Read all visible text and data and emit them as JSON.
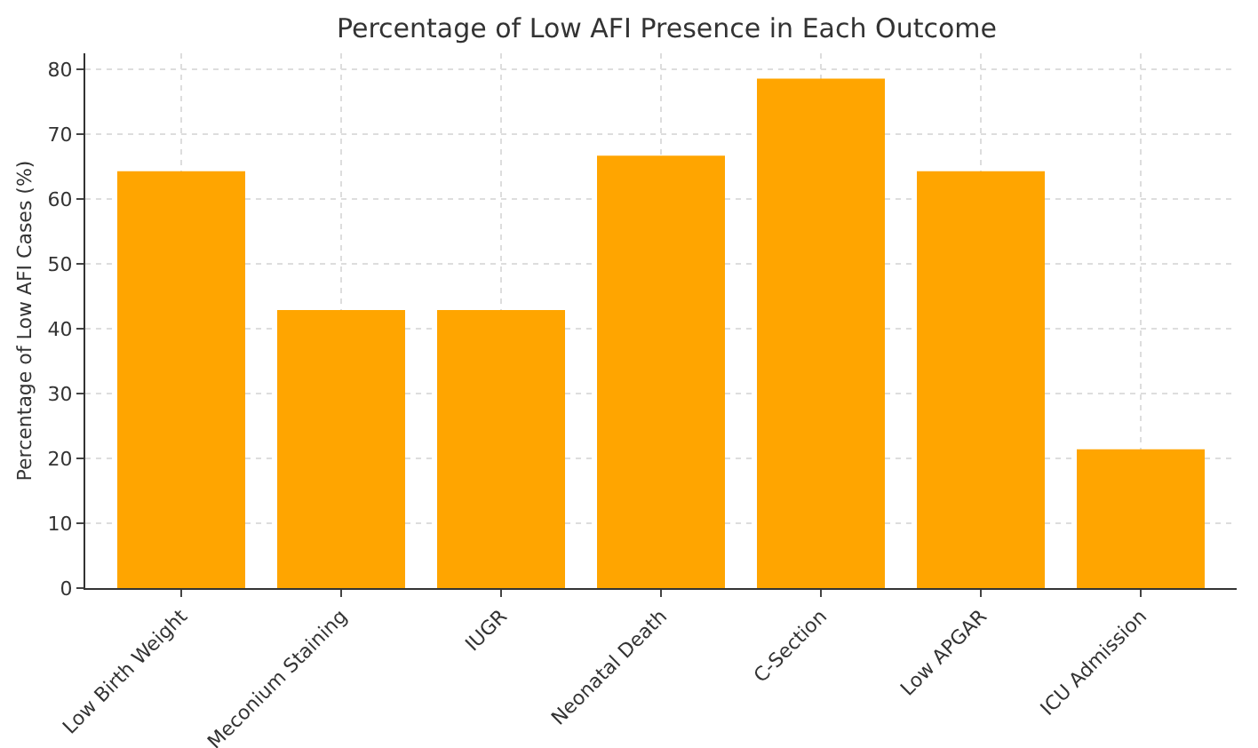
{
  "chart_data": {
    "type": "bar",
    "title": "Percentage of Low AFI Presence in Each Outcome",
    "ylabel": "Percentage of Low AFI Cases (%)",
    "categories": [
      "Low Birth Weight",
      "Meconium Staining",
      "IUGR",
      "Neonatal Death",
      "C-Section",
      "Low APGAR",
      "ICU Admission"
    ],
    "values": [
      64.3,
      42.9,
      42.9,
      66.7,
      78.6,
      64.3,
      21.4
    ],
    "color": "#ffa500",
    "ylim": [
      0,
      82.5
    ],
    "yticks": [
      0,
      10,
      20,
      30,
      40,
      50,
      60,
      70,
      80
    ],
    "grid": true
  }
}
